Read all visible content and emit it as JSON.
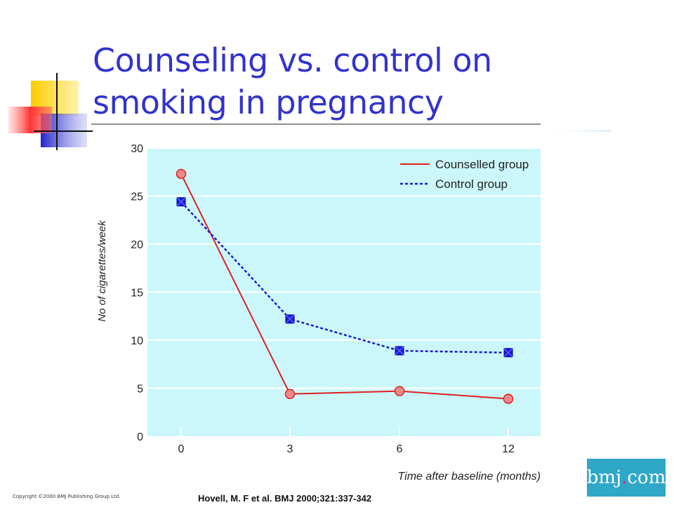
{
  "slide": {
    "title": "Counseling vs. control on smoking in pregnancy",
    "copyright": "Copyright ©2000 BMJ Publishing Group Ltd.",
    "citation": "Hovell, M. F et al. BMJ 2000;321:337-342",
    "logo": {
      "text_before": "bmj",
      "dot": ".",
      "text_after": "com"
    }
  },
  "colors": {
    "title": "#3333cc",
    "plot_bg": "#ccf7fa",
    "counselled": "#e02020",
    "counselled_marker": "#f08a8a",
    "control": "#1a1ad9",
    "logo_bg": "#2fa7c7"
  },
  "chart_data": {
    "type": "line",
    "title": "",
    "xlabel": "Time after baseline (months)",
    "ylabel": "No of cigarettes/week",
    "categories": [
      "0",
      "3",
      "6",
      "12"
    ],
    "ylim": [
      0,
      30
    ],
    "yticks": [
      0,
      5,
      10,
      15,
      20,
      25,
      30
    ],
    "grid": true,
    "legend_position": "top-right",
    "series": [
      {
        "name": "Counselled group",
        "values": [
          27.3,
          4.4,
          4.7,
          3.9
        ],
        "line_style": "solid",
        "marker": "circle"
      },
      {
        "name": "Control group",
        "values": [
          24.4,
          12.2,
          8.9,
          8.7
        ],
        "line_style": "dotted",
        "marker": "square"
      }
    ]
  }
}
